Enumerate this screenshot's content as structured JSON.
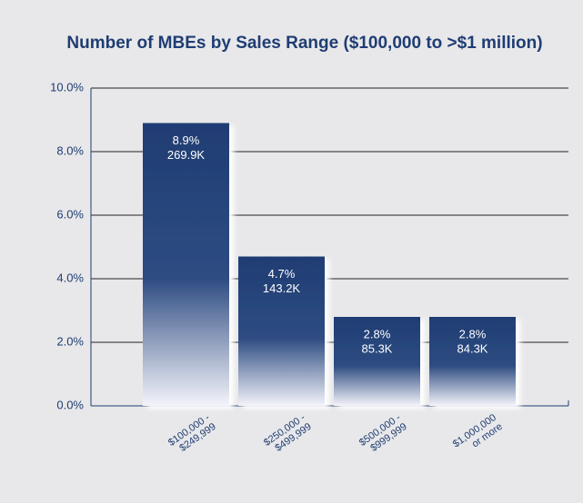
{
  "chart_data": {
    "type": "bar",
    "title": "Number of MBEs by Sales Range ($100,000 to >$1 million)",
    "categories": [
      [
        "$100,000 -",
        "$249,999"
      ],
      [
        "$250,000 -",
        "$499,999"
      ],
      [
        "$500,000 -",
        "$999,999"
      ],
      [
        "$1,000,000",
        "or more"
      ]
    ],
    "values": [
      8.9,
      4.7,
      2.8,
      2.8
    ],
    "value_labels": [
      "8.9%",
      "4.7%",
      "2.8%",
      "2.8%"
    ],
    "count_labels": [
      "269.9K",
      "143.2K",
      "85.3K",
      "84.3K"
    ],
    "color": "#1f3d73",
    "ylim": [
      0,
      10
    ],
    "yticks": [
      {
        "value": 0,
        "label": "0.0%"
      },
      {
        "value": 2,
        "label": "2.0%"
      },
      {
        "value": 4,
        "label": "4.0%"
      },
      {
        "value": 6,
        "label": "6.0%"
      },
      {
        "value": 8,
        "label": "8.0%"
      },
      {
        "value": 10,
        "label": "10.0%"
      }
    ],
    "grid": true
  }
}
